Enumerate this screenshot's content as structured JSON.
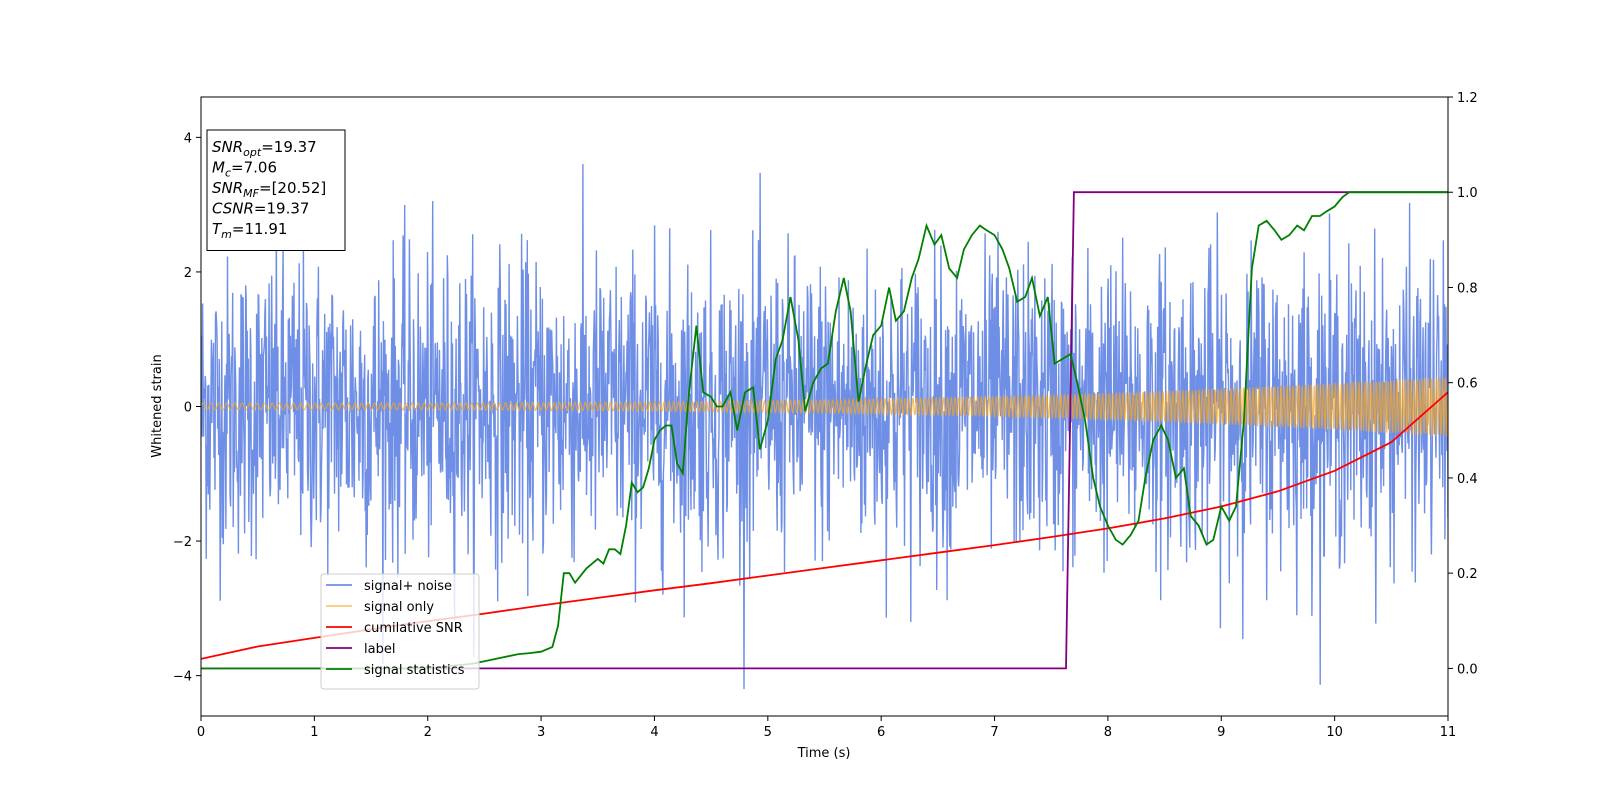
{
  "chart_data": {
    "type": "line",
    "title": "",
    "xlabel": "Time (s)",
    "ylabel": "Whitened strain",
    "xlim": [
      0,
      11
    ],
    "ylim_left": [
      -4.6,
      4.6
    ],
    "ylim_right": [
      -0.1,
      1.2
    ],
    "x_ticks": [
      0,
      1,
      2,
      3,
      4,
      5,
      6,
      7,
      8,
      9,
      10,
      11
    ],
    "y_ticks_left": [
      -4,
      -2,
      0,
      2,
      4
    ],
    "y_ticks_right": [
      0.0,
      0.2,
      0.4,
      0.6,
      0.8,
      1.0,
      1.2
    ],
    "y_tick_labels_left": [
      "−4",
      "−2",
      "0",
      "2",
      "4"
    ],
    "y_tick_labels_right": [
      "0.0",
      "0.2",
      "0.4",
      "0.6",
      "0.8",
      "1.0",
      "1.2"
    ],
    "grid": false,
    "legend_position": "lower-left",
    "info_box": {
      "position": "top-left",
      "lines": [
        {
          "sym": "SNR",
          "sub": "opt",
          "val": "=19.37"
        },
        {
          "sym": "M",
          "sub": "c",
          "val": "=7.06"
        },
        {
          "sym": "SNR",
          "sub": "MF",
          "val": "=[20.52]"
        },
        {
          "sym": "CSNR",
          "sub": "",
          "val": "=19.37"
        },
        {
          "sym": "T",
          "sub": "m",
          "val": "=11.91"
        }
      ]
    },
    "series": [
      {
        "name": "signal+ noise",
        "axis": "left",
        "color": "#6f8fe6",
        "kind": "noise",
        "noise_std": 1.1,
        "signal_amplitude_start": 0.05,
        "signal_amplitude_end": 0.45
      },
      {
        "name": "signal only",
        "axis": "left",
        "color": "#f5a623",
        "kind": "chirp",
        "amplitude_start": 0.05,
        "amplitude_end": 0.45
      },
      {
        "name": "cumilative SNR",
        "axis": "right",
        "color": "#ff0000",
        "x": [
          0,
          0.5,
          1,
          1.5,
          2,
          2.5,
          3,
          3.5,
          4,
          4.5,
          5,
          5.5,
          6,
          6.5,
          7,
          7.5,
          8,
          8.5,
          9,
          9.5,
          10,
          10.5,
          11
        ],
        "y": [
          0.02,
          0.046,
          0.064,
          0.082,
          0.099,
          0.115,
          0.132,
          0.148,
          0.164,
          0.179,
          0.195,
          0.211,
          0.227,
          0.243,
          0.259,
          0.276,
          0.294,
          0.315,
          0.34,
          0.372,
          0.415,
          0.475,
          0.58
        ]
      },
      {
        "name": "label",
        "axis": "right",
        "color": "#800080",
        "x": [
          0,
          7.63,
          7.7,
          11
        ],
        "y": [
          0.0,
          0.0,
          1.0,
          1.0
        ]
      },
      {
        "name": "signal statistics",
        "axis": "right",
        "color": "#008000",
        "x": [
          0,
          0.4,
          0.8,
          1.2,
          1.6,
          2.0,
          2.4,
          2.6,
          2.8,
          2.9,
          3.0,
          3.1,
          3.15,
          3.2,
          3.25,
          3.3,
          3.4,
          3.5,
          3.55,
          3.6,
          3.65,
          3.7,
          3.75,
          3.8,
          3.85,
          3.9,
          3.95,
          4.0,
          4.05,
          4.1,
          4.15,
          4.2,
          4.25,
          4.3,
          4.37,
          4.43,
          4.5,
          4.55,
          4.6,
          4.67,
          4.73,
          4.8,
          4.87,
          4.93,
          5.0,
          5.07,
          5.13,
          5.2,
          5.27,
          5.33,
          5.4,
          5.47,
          5.53,
          5.6,
          5.67,
          5.73,
          5.8,
          5.87,
          5.93,
          6.0,
          6.07,
          6.13,
          6.2,
          6.27,
          6.33,
          6.4,
          6.47,
          6.53,
          6.6,
          6.67,
          6.73,
          6.8,
          6.87,
          6.93,
          7.0,
          7.07,
          7.13,
          7.2,
          7.27,
          7.33,
          7.4,
          7.47,
          7.53,
          7.6,
          7.67,
          7.73,
          7.8,
          7.87,
          7.93,
          8.0,
          8.07,
          8.13,
          8.2,
          8.27,
          8.33,
          8.4,
          8.47,
          8.53,
          8.6,
          8.67,
          8.73,
          8.8,
          8.87,
          8.93,
          9.0,
          9.07,
          9.13,
          9.2,
          9.27,
          9.33,
          9.4,
          9.47,
          9.53,
          9.6,
          9.67,
          9.73,
          9.8,
          9.87,
          9.93,
          10.0,
          10.07,
          10.13,
          10.2,
          10.4,
          10.6,
          10.8,
          11.0
        ],
        "y": [
          0.0,
          0.0,
          0.0,
          0.0,
          0.0,
          0.0,
          0.01,
          0.02,
          0.03,
          0.032,
          0.035,
          0.045,
          0.09,
          0.2,
          0.2,
          0.18,
          0.21,
          0.23,
          0.22,
          0.25,
          0.25,
          0.24,
          0.3,
          0.39,
          0.37,
          0.38,
          0.42,
          0.48,
          0.5,
          0.51,
          0.51,
          0.43,
          0.41,
          0.57,
          0.72,
          0.58,
          0.57,
          0.55,
          0.55,
          0.58,
          0.5,
          0.58,
          0.59,
          0.46,
          0.52,
          0.65,
          0.69,
          0.78,
          0.69,
          0.54,
          0.6,
          0.63,
          0.64,
          0.75,
          0.82,
          0.75,
          0.56,
          0.64,
          0.7,
          0.72,
          0.8,
          0.73,
          0.75,
          0.82,
          0.86,
          0.93,
          0.89,
          0.91,
          0.84,
          0.82,
          0.88,
          0.91,
          0.93,
          0.92,
          0.91,
          0.88,
          0.84,
          0.77,
          0.78,
          0.82,
          0.74,
          0.78,
          0.64,
          0.65,
          0.66,
          0.6,
          0.52,
          0.4,
          0.34,
          0.3,
          0.27,
          0.26,
          0.28,
          0.31,
          0.4,
          0.48,
          0.51,
          0.48,
          0.4,
          0.42,
          0.32,
          0.3,
          0.26,
          0.27,
          0.34,
          0.31,
          0.34,
          0.52,
          0.84,
          0.93,
          0.94,
          0.92,
          0.9,
          0.91,
          0.93,
          0.92,
          0.95,
          0.95,
          0.96,
          0.97,
          0.99,
          1.0,
          1.0,
          1.0,
          1.0,
          1.0,
          1.0
        ]
      }
    ]
  }
}
